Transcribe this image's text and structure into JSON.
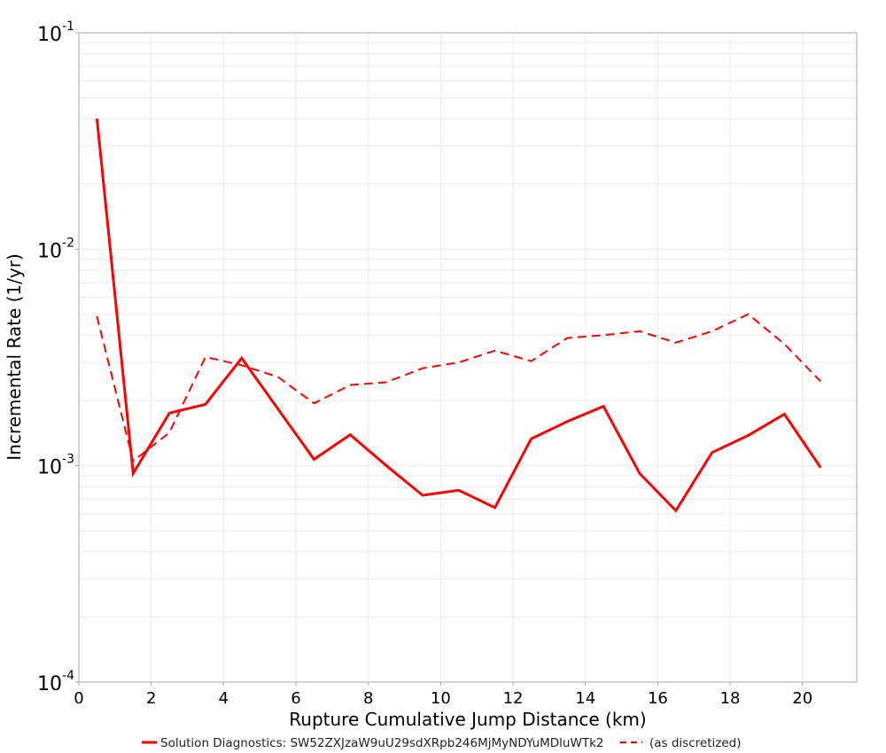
{
  "chart_data": {
    "type": "line",
    "title": "",
    "xlabel": "Rupture Cumulative Jump Distance (km)",
    "ylabel": "Incremental Rate (1/yr)",
    "xlim": [
      0,
      21.5
    ],
    "ylim": [
      0.0001,
      0.1
    ],
    "yscale": "log",
    "grid": true,
    "legend_position": "bottom",
    "x_ticks": [
      0,
      2,
      4,
      6,
      8,
      10,
      12,
      14,
      16,
      18,
      20
    ],
    "x_tick_labels": [
      "0",
      "2",
      "4",
      "6",
      "8",
      "10",
      "12",
      "14",
      "16",
      "18",
      "20"
    ],
    "y_ticks": [
      0.1,
      0.01,
      0.001,
      0.0001
    ],
    "y_tick_labels": [
      {
        "base": "10",
        "exp": "-1"
      },
      {
        "base": "10",
        "exp": "-2"
      },
      {
        "base": "10",
        "exp": "-3"
      },
      {
        "base": "10",
        "exp": "-4"
      }
    ],
    "x": [
      0.5,
      1.5,
      2.5,
      3.5,
      4.5,
      5.5,
      6.5,
      7.5,
      8.5,
      9.5,
      10.5,
      11.5,
      12.5,
      13.5,
      14.5,
      15.5,
      16.5,
      17.5,
      18.5,
      19.5,
      20.5
    ],
    "series": [
      {
        "name": "Solution Diagnostics: SW52ZXJzaW9uU29sdXRpb246MjMyNDYuMDluWTk2",
        "color": "#ff0000",
        "style": "solid",
        "values": [
          0.0401,
          0.00092,
          0.00175,
          0.00192,
          0.00314,
          0.00183,
          0.00107,
          0.00139,
          0.001,
          0.00073,
          0.00077,
          0.00064,
          0.00133,
          0.0016,
          0.00188,
          0.00092,
          0.00062,
          0.00115,
          0.00138,
          0.00173,
          0.00098
        ]
      },
      {
        "name": "(as discretized)",
        "color": "#ff0000",
        "style": "dashed",
        "values": [
          0.0049,
          0.00105,
          0.00142,
          0.00318,
          0.00291,
          0.00257,
          0.00194,
          0.00236,
          0.00243,
          0.00282,
          0.003,
          0.0034,
          0.00304,
          0.00389,
          0.00401,
          0.00418,
          0.0037,
          0.00418,
          0.00501,
          0.00365,
          0.00245
        ]
      }
    ]
  },
  "legend": {
    "items": [
      {
        "label": "Solution Diagnostics: SW52ZXJzaW9uU29sdXRpb246MjMyNDYuMDluWTk2",
        "style": "solid"
      },
      {
        "label": "(as discretized)",
        "style": "dashed"
      }
    ]
  },
  "colors": {
    "series": "#ff0000",
    "grid": "#ebebeb",
    "axis": "#a8a8a8"
  }
}
